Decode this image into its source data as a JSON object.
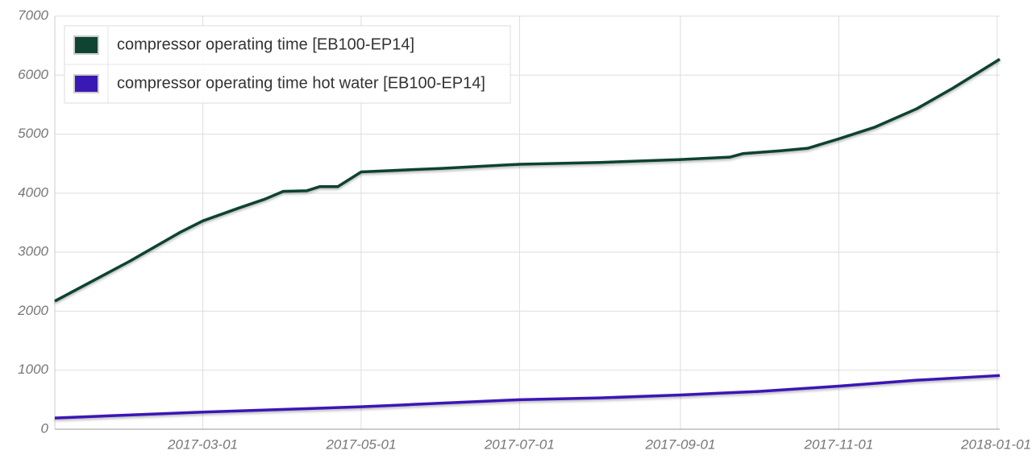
{
  "chart_data": {
    "type": "line",
    "series": [
      {
        "name": "compressor operating time [EB100-EP14]",
        "color": "#0f4332",
        "x": [
          "2017-01-03",
          "2017-02-01",
          "2017-02-20",
          "2017-03-01",
          "2017-03-15",
          "2017-03-25",
          "2017-04-01",
          "2017-04-10",
          "2017-04-15",
          "2017-04-22",
          "2017-05-01",
          "2017-06-01",
          "2017-07-01",
          "2017-08-01",
          "2017-09-01",
          "2017-09-20",
          "2017-09-25",
          "2017-10-10",
          "2017-10-20",
          "2017-11-01",
          "2017-11-15",
          "2017-12-01",
          "2017-12-15",
          "2018-01-02"
        ],
        "values": [
          2170,
          2850,
          3330,
          3530,
          3750,
          3900,
          4030,
          4040,
          4110,
          4110,
          4360,
          4420,
          4490,
          4520,
          4570,
          4610,
          4670,
          4720,
          4760,
          4920,
          5120,
          5430,
          5780,
          6270
        ]
      },
      {
        "name": "compressor operating time hot water [EB100-EP14]",
        "color": "#3a18b4",
        "x": [
          "2017-01-03",
          "2017-03-01",
          "2017-05-01",
          "2017-07-01",
          "2017-08-01",
          "2017-09-01",
          "2017-10-01",
          "2017-11-01",
          "2017-12-01",
          "2018-01-02"
        ],
        "values": [
          190,
          290,
          380,
          500,
          530,
          580,
          640,
          730,
          830,
          910
        ]
      }
    ],
    "xlim": [
      "2017-01-03",
      "2018-01-02"
    ],
    "xticks": [
      "2017-03-01",
      "2017-05-01",
      "2017-07-01",
      "2017-09-01",
      "2017-11-01",
      "2018-01-01"
    ],
    "ylim": [
      0,
      7000
    ],
    "yticks": [
      0,
      1000,
      2000,
      3000,
      4000,
      5000,
      6000,
      7000
    ],
    "grid": true,
    "legend": "top-left"
  }
}
